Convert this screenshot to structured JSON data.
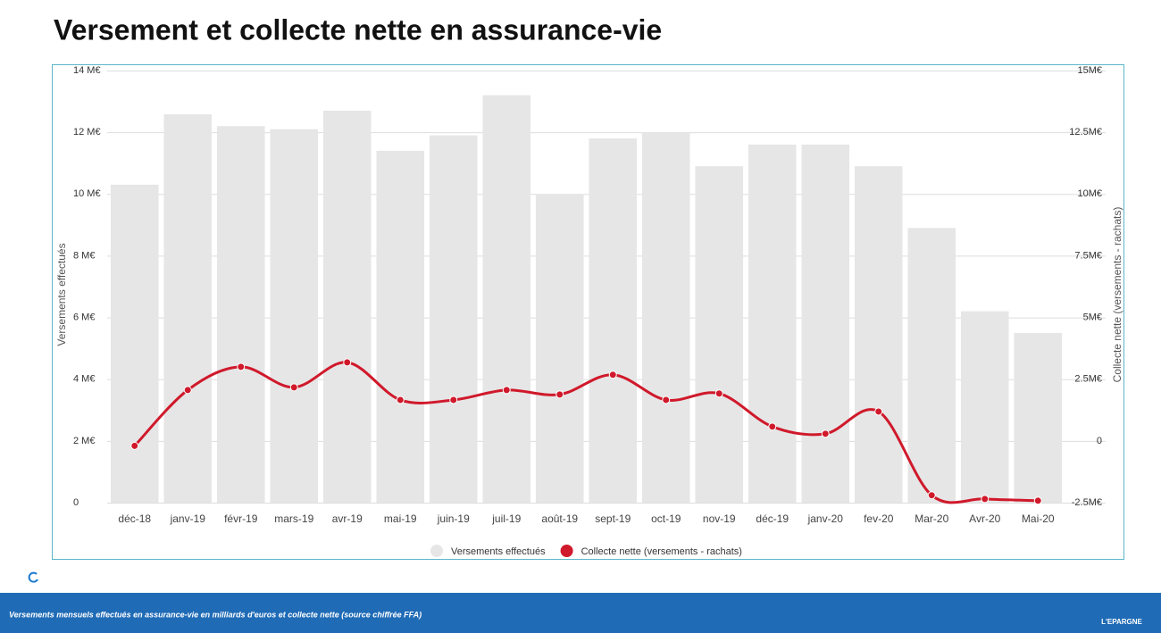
{
  "title": "Versement et collecte nette en assurance-vie",
  "caption": "Versements mensuels effectués en assurance-vie en milliards d'euros et collecte nette (source chiffrée FFA)",
  "logo": "L'EPARGNE",
  "chart_data": {
    "type": "bar",
    "categories": [
      "déc-18",
      "janv-19",
      "févr-19",
      "mars-19",
      "avr-19",
      "mai-19",
      "juin-19",
      "juil-19",
      "août-19",
      "sept-19",
      "oct-19",
      "nov-19",
      "déc-19",
      "janv-20",
      "fev-20",
      "Mar-20",
      "Avr-20",
      "Mai-20"
    ],
    "y_label": "Versements effectués",
    "y2_label": "Collecte nette (versements - rachats)",
    "series": [
      {
        "name": "Versements effectués",
        "color": "#e6e6e6",
        "values": [
          10.3,
          12.58,
          12.2,
          12.1,
          12.7,
          11.4,
          11.9,
          13.2,
          10.0,
          11.8,
          12.0,
          10.9,
          11.6,
          11.6,
          10.9,
          8.9,
          6.2,
          5.5
        ]
      },
      {
        "name": "Collecte nette (versements - rachats)",
        "color": "#d0192b",
        "axis": "y2",
        "type": "line",
        "values": [
          -0.2,
          2.06,
          3.0,
          2.17,
          3.18,
          1.66,
          1.66,
          2.06,
          1.88,
          2.68,
          1.66,
          1.92,
          0.58,
          0.29,
          1.19,
          -2.2,
          -2.35,
          -2.42
        ]
      }
    ],
    "ylim": [
      0,
      14
    ],
    "yticks": [
      0,
      {
        "value": 2,
        "label": "2 M€"
      },
      {
        "value": 4,
        "label": "4 M€"
      },
      {
        "value": 6,
        "label": "6 M€"
      },
      {
        "value": 8,
        "label": "8 M€"
      },
      {
        "value": 10,
        "label": "10 M€"
      },
      {
        "value": 12,
        "label": "12 M€"
      },
      {
        "value": 14,
        "label": "14 M€"
      }
    ],
    "y2lim": [
      -2.5,
      15
    ],
    "y2ticks": [
      {
        "value": -2.5,
        "label": "-2.5M€"
      },
      0,
      {
        "value": 2.5,
        "label": "2.5M€"
      },
      {
        "value": 5,
        "label": "5M€"
      },
      {
        "value": 7.5,
        "label": "7.5M€"
      },
      {
        "value": 10,
        "label": "10M€"
      },
      {
        "value": 12.5,
        "label": "12.5M€"
      },
      {
        "value": 15,
        "label": "15M€"
      }
    ],
    "grid": true,
    "legend": "bottom"
  }
}
